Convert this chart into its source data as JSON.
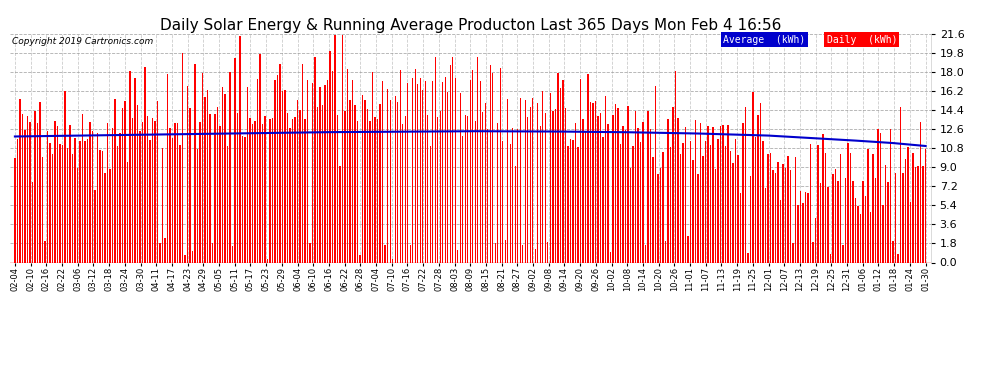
{
  "title": "Daily Solar Energy & Running Average Producton Last 365 Days Mon Feb 4 16:56",
  "copyright": "Copyright 2019 Cartronics.com",
  "ylim": [
    0.0,
    21.6
  ],
  "yticks": [
    0.0,
    1.8,
    3.6,
    5.4,
    7.2,
    9.0,
    10.8,
    12.6,
    14.4,
    16.2,
    18.0,
    19.8,
    21.6
  ],
  "bar_color": "#FF0000",
  "avg_color": "#0000CC",
  "background_color": "#FFFFFF",
  "grid_color": "#999999",
  "legend_avg_bg": "#0000CC",
  "legend_daily_bg": "#FF0000",
  "title_fontsize": 11,
  "num_days": 365,
  "x_tick_labels": [
    "02-04",
    "02-10",
    "02-16",
    "02-22",
    "03-06",
    "03-12",
    "03-18",
    "03-24",
    "03-30",
    "04-11",
    "04-17",
    "04-23",
    "04-29",
    "05-05",
    "05-11",
    "05-17",
    "05-23",
    "05-29",
    "06-04",
    "06-10",
    "06-16",
    "06-22",
    "06-28",
    "07-04",
    "07-10",
    "07-16",
    "07-22",
    "07-28",
    "08-03",
    "08-09",
    "08-15",
    "08-21",
    "08-27",
    "09-02",
    "09-08",
    "09-14",
    "09-20",
    "09-26",
    "10-02",
    "10-08",
    "10-14",
    "10-20",
    "10-26",
    "11-01",
    "11-07",
    "11-13",
    "11-19",
    "11-25",
    "12-01",
    "12-07",
    "12-13",
    "12-19",
    "12-25",
    "12-31",
    "01-06",
    "01-12",
    "01-18",
    "01-24",
    "01-30"
  ],
  "avg_curve_points": [
    [
      0,
      11.9
    ],
    [
      30,
      12.0
    ],
    [
      60,
      12.1
    ],
    [
      90,
      12.2
    ],
    [
      120,
      12.3
    ],
    [
      150,
      12.35
    ],
    [
      180,
      12.4
    ],
    [
      210,
      12.38
    ],
    [
      240,
      12.32
    ],
    [
      270,
      12.2
    ],
    [
      300,
      12.0
    ],
    [
      330,
      11.6
    ],
    [
      350,
      11.3
    ],
    [
      364,
      11.0
    ]
  ]
}
